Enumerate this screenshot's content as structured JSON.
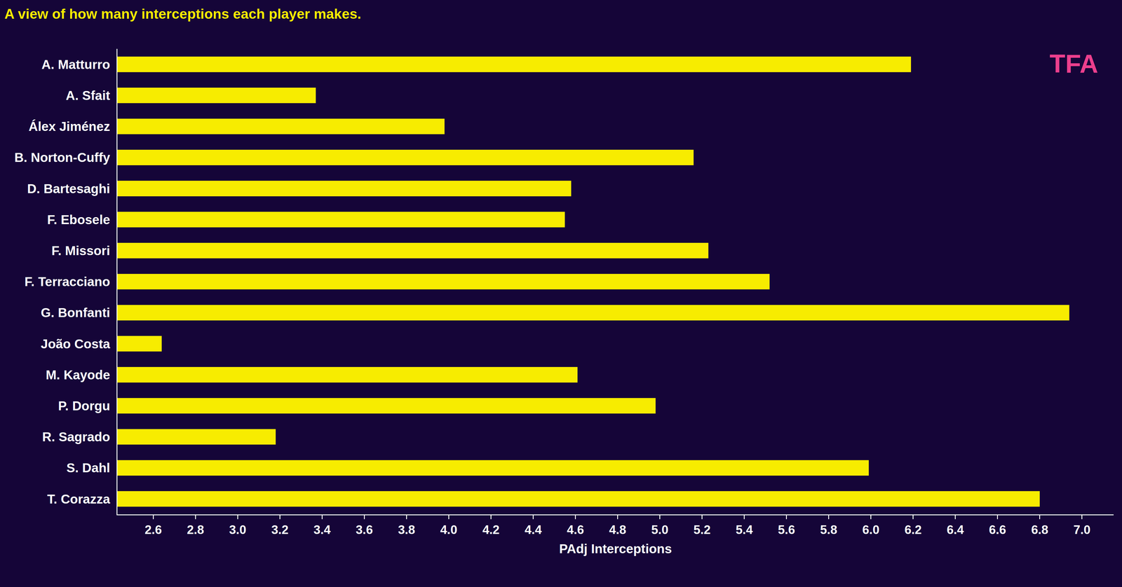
{
  "chart_data": {
    "type": "bar",
    "title": "A view of how many interceptions each player makes.",
    "x_label": "PAdj Interceptions",
    "orientation": "horizontal",
    "categories": [
      "A. Matturro",
      "A. Sfait",
      "Álex Jiménez",
      "B. Norton-Cuffy",
      "D. Bartesaghi",
      "F. Ebosele",
      "F. Missori",
      "F. Terracciano",
      "G. Bonfanti",
      "João Costa",
      "M. Kayode",
      "P. Dorgu",
      "R. Sagrado",
      "S. Dahl",
      "T. Corazza"
    ],
    "values": [
      6.19,
      3.37,
      3.98,
      5.16,
      4.58,
      4.55,
      5.23,
      5.52,
      6.94,
      2.64,
      4.61,
      4.98,
      3.18,
      5.99,
      6.8
    ],
    "color": "#f7ec00",
    "xlim": [
      2.43,
      7.15
    ],
    "xticks": [
      2.6,
      2.8,
      {
        "value": 3,
        "label": "3.0"
      },
      3.2,
      3.4,
      3.6,
      3.8,
      {
        "value": 4,
        "label": "4.0"
      },
      4.2,
      4.4,
      4.6,
      4.8,
      {
        "value": 5,
        "label": "5.0"
      },
      5.2,
      5.4,
      5.6,
      5.8,
      {
        "value": 6,
        "label": "6.0"
      },
      6.2,
      6.4,
      6.6,
      6.8,
      {
        "value": 7,
        "label": "7.0"
      }
    ],
    "grid": false,
    "annotations": [
      "TFA"
    ]
  }
}
